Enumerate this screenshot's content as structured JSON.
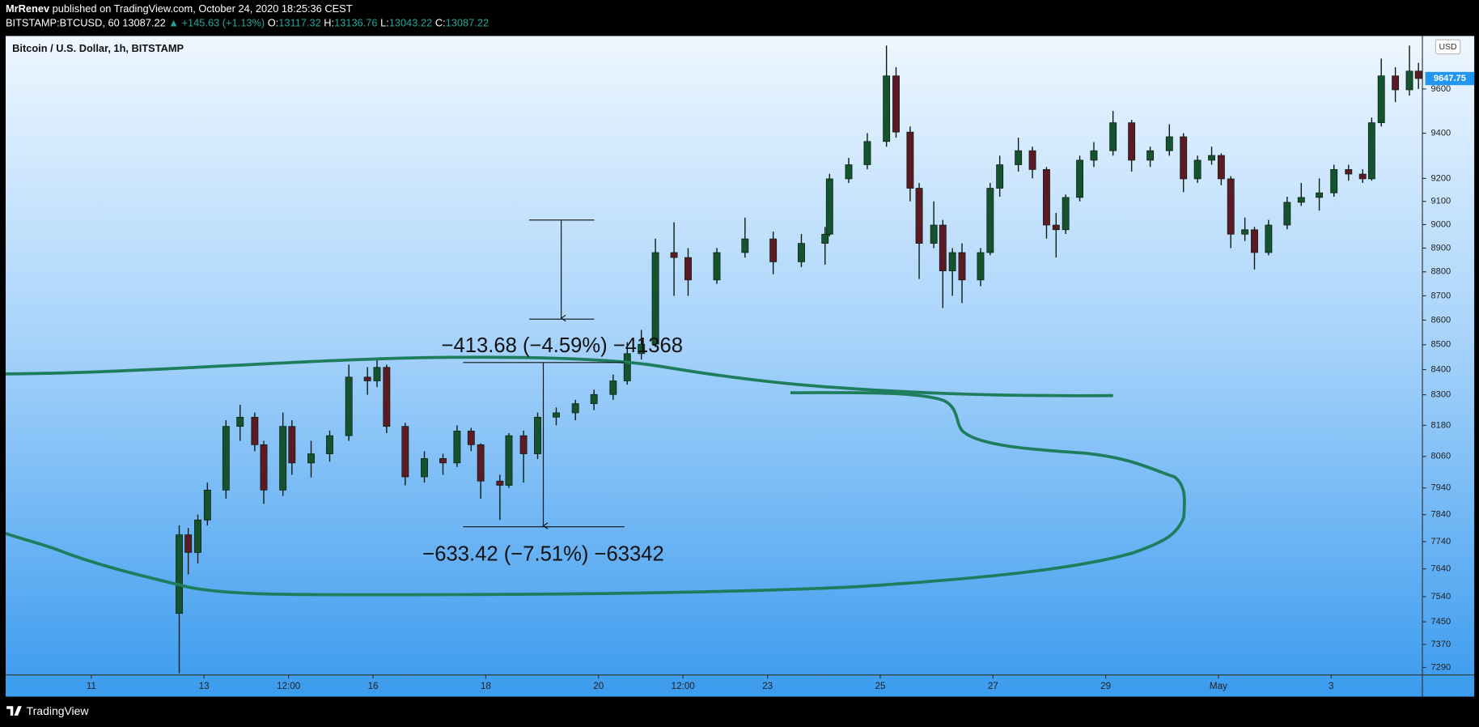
{
  "header": {
    "author": "MrRenev",
    "published": "published on TradingView.com, October 24, 2020 18:25:36 CEST",
    "symbol": "BITSTAMP:BTCUSD, 60",
    "last": "13087.22",
    "change": "▲ +145.63 (+1.13%)",
    "ohlc": [
      {
        "label": "O:",
        "value": "13117.32"
      },
      {
        "label": "H:",
        "value": "13136.76"
      },
      {
        "label": "L:",
        "value": "13043.22"
      },
      {
        "label": "C:",
        "value": "13087.22"
      }
    ]
  },
  "footer": {
    "brand": "TradingView"
  },
  "chart_data": {
    "type": "candlestick",
    "title": "Bitcoin / U.S. Dollar, 1h, BITSTAMP",
    "currency": "USD",
    "annotations": [
      "−413.68 (−4.59%) −41368",
      "−633.42 (−7.51%) −63342"
    ],
    "x": [
      12.56,
      12.72,
      12.89,
      13.06,
      13.39,
      13.64,
      13.9,
      14.06,
      14.4,
      14.56,
      14.9,
      15.23,
      15.57,
      15.9,
      16.07,
      16.24,
      16.57,
      16.91,
      17.24,
      17.49,
      17.74,
      17.91,
      18.25,
      18.41,
      18.67,
      18.92,
      19.25,
      19.59,
      19.92,
      20.26,
      20.51,
      20.76,
      21.01,
      21.34,
      21.59,
      22.1,
      22.6,
      23.1,
      23.6,
      24.02,
      24.1,
      24.44,
      24.77,
      25.11,
      25.28,
      25.53,
      25.69,
      25.95,
      26.11,
      26.28,
      26.45,
      26.78,
      26.95,
      27.12,
      27.45,
      27.7,
      27.95,
      28.12,
      28.29,
      28.54,
      28.79,
      29.13,
      29.46,
      29.79,
      30.13,
      30.38,
      30.63,
      30.88,
      31.05,
      31.22,
      31.47,
      31.64,
      31.89,
      32.22,
      32.47,
      32.79,
      33.05,
      33.31,
      33.56,
      33.72,
      33.89,
      34.14,
      34.39,
      34.55
    ],
    "open": [
      7480,
      7765,
      7700,
      7820,
      7932,
      8176,
      8212,
      8105,
      7932,
      8176,
      8035,
      8070,
      8140,
      8370,
      8355,
      8409,
      8176,
      7982,
      8052,
      8035,
      8158,
      8105,
      7966,
      7950,
      8140,
      8070,
      8212,
      8229,
      8265,
      8301,
      8355,
      8464,
      8502,
      8881,
      8860,
      8766,
      8881,
      8939,
      8842,
      8920,
      8959,
      9198,
      9260,
      9363,
      9660,
      9405,
      9157,
      8920,
      8998,
      8804,
      8881,
      8766,
      8881,
      9157,
      9260,
      9322,
      9239,
      8998,
      8978,
      9117,
      9280,
      9322,
      9447,
      9280,
      9322,
      9384,
      9198,
      9280,
      9301,
      9198,
      8959,
      8978,
      8881,
      8998,
      9096,
      9117,
      9137,
      9239,
      9219,
      9198,
      9447,
      9660,
      9596,
      9682
    ],
    "high": [
      7800,
      7790,
      7840,
      7960,
      8200,
      8260,
      8230,
      8120,
      8230,
      8200,
      8120,
      8160,
      8420,
      8410,
      8440,
      8420,
      8190,
      8080,
      8070,
      8180,
      8170,
      8110,
      7990,
      8150,
      8160,
      8230,
      8250,
      8280,
      8320,
      8380,
      8510,
      8560,
      8940,
      9010,
      8900,
      8900,
      9030,
      8970,
      8960,
      8990,
      9220,
      9290,
      9400,
      9800,
      9700,
      9430,
      9180,
      9100,
      9020,
      8900,
      8920,
      8900,
      9180,
      9300,
      9380,
      9340,
      9250,
      9050,
      9130,
      9300,
      9360,
      9500,
      9460,
      9340,
      9440,
      9400,
      9300,
      9340,
      9310,
      9210,
      9030,
      8990,
      9020,
      9120,
      9180,
      9200,
      9260,
      9260,
      9240,
      9470,
      9740,
      9700,
      9800,
      9720
    ],
    "low": [
      7270,
      7620,
      7660,
      7800,
      7900,
      8120,
      8080,
      7880,
      7910,
      7990,
      7980,
      8040,
      8120,
      8300,
      8330,
      8150,
      7950,
      7960,
      7990,
      8020,
      8080,
      7900,
      7820,
      7940,
      7960,
      8050,
      8180,
      8200,
      8240,
      8280,
      8340,
      8440,
      8490,
      8700,
      8700,
      8750,
      8860,
      8790,
      8820,
      8830,
      8950,
      9180,
      9240,
      9340,
      9380,
      9100,
      8770,
      8900,
      8650,
      8700,
      8670,
      8740,
      8870,
      9120,
      9230,
      9200,
      8940,
      8860,
      8960,
      9100,
      9250,
      9300,
      9230,
      9250,
      9300,
      9140,
      9180,
      9260,
      9170,
      8900,
      8930,
      8810,
      8870,
      8980,
      9080,
      9060,
      9120,
      9190,
      9180,
      9190,
      9430,
      9540,
      9570,
      9600
    ],
    "close": [
      7765,
      7700,
      7820,
      7932,
      8176,
      8212,
      8105,
      7932,
      8176,
      8035,
      8070,
      8140,
      8370,
      8355,
      8409,
      8176,
      7982,
      8052,
      8035,
      8158,
      8105,
      7966,
      7950,
      8140,
      8070,
      8212,
      8229,
      8265,
      8301,
      8355,
      8464,
      8502,
      8881,
      8860,
      8766,
      8881,
      8939,
      8842,
      8920,
      8959,
      9198,
      9260,
      9363,
      9660,
      9405,
      9157,
      8920,
      8998,
      8804,
      8881,
      8766,
      8881,
      9157,
      9260,
      9322,
      9239,
      8998,
      8978,
      9117,
      9280,
      9322,
      9447,
      9280,
      9322,
      9384,
      9198,
      9280,
      9301,
      9198,
      8959,
      8978,
      8881,
      8998,
      9096,
      9117,
      9137,
      9239,
      9219,
      9198,
      9447,
      9660,
      9596,
      9682,
      9647.75
    ],
    "up_color": "#14532d",
    "down_color": "#5b1a24",
    "wick_color": "#0b1b10",
    "log_scale": true,
    "xlim": [
      9.48,
      34.62
    ],
    "ylim": [
      7264,
      9845
    ],
    "yticks": [
      7290,
      7370,
      7450,
      7540,
      7640,
      7740,
      7840,
      7940,
      8060,
      8180,
      8300,
      8400,
      8500,
      8600,
      8700,
      8800,
      8900,
      9000,
      9100,
      9200,
      9400,
      9600
    ],
    "xticks": [
      11,
      13,
      {
        "value": 14.5,
        "label": "12:00"
      },
      16,
      18,
      20,
      {
        "value": 21.5,
        "label": "12:00"
      },
      23,
      25,
      27,
      29,
      {
        "value": 31,
        "label": "May"
      },
      {
        "value": 33,
        "label": "3"
      }
    ]
  }
}
